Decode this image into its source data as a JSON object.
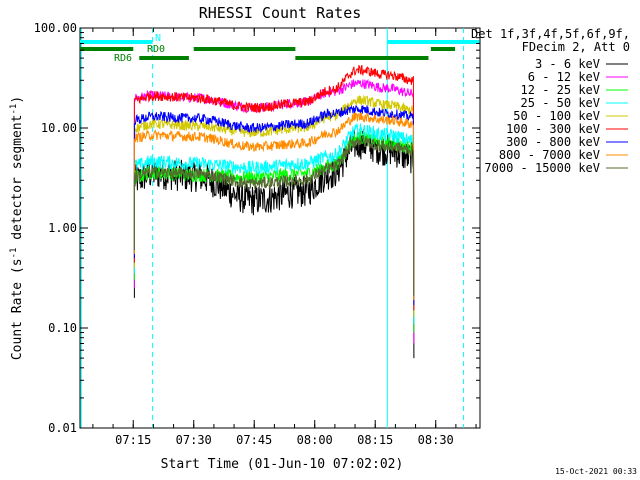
{
  "chart_data": {
    "type": "line",
    "title": "RHESSI Count Rates",
    "xlabel": "Start Time (01-Jun-10 07:02:02)",
    "ylabel_main": "Count Rate (s",
    "ylabel_sup1": "-1",
    "ylabel_mid": " detector segment",
    "ylabel_sup2": "-1",
    "ylabel_end": ")",
    "yscale": "log",
    "ylim": [
      0.01,
      100
    ],
    "xlim_minutes": [
      7.03,
      8.683
    ],
    "x_ticks": [
      {
        "label": "07:15",
        "t": 7.25
      },
      {
        "label": "07:30",
        "t": 7.5
      },
      {
        "label": "07:45",
        "t": 7.75
      },
      {
        "label": "08:00",
        "t": 8.0
      },
      {
        "label": "08:15",
        "t": 8.25
      },
      {
        "label": "08:30",
        "t": 8.5
      }
    ],
    "y_ticks": [
      {
        "label": "100.00",
        "v": 100
      },
      {
        "label": "10.00",
        "v": 10
      },
      {
        "label": "1.00",
        "v": 1
      },
      {
        "label": "0.10",
        "v": 0.1
      },
      {
        "label": "0.01",
        "v": 0.01
      }
    ],
    "legend_header_1": "Det 1f,3f,4f,5f,6f,9f,",
    "legend_header_2": "FDecim 2, Att 0",
    "data_start": 7.255,
    "data_end": 8.41,
    "key_times": [
      7.255,
      7.33,
      7.5,
      7.75,
      7.95,
      8.07,
      8.18,
      8.3,
      8.41
    ],
    "series": [
      {
        "name": "3 - 6 keV",
        "color": "#000000",
        "noise": 0.16,
        "profile": [
          3.0,
          3.5,
          3.3,
          1.9,
          2.3,
          3.5,
          7.0,
          6.0,
          5.0
        ]
      },
      {
        "name": "6 - 12 keV",
        "color": "#ff00ff",
        "noise": 0.05,
        "profile": [
          20,
          21,
          20,
          16,
          18,
          23,
          28,
          25,
          22
        ]
      },
      {
        "name": "12 - 25 keV",
        "color": "#00ff00",
        "noise": 0.07,
        "profile": [
          3.2,
          3.6,
          3.4,
          3.2,
          3.5,
          4.2,
          8.0,
          7.0,
          6.5
        ]
      },
      {
        "name": "25 - 50 keV",
        "color": "#00ffff",
        "noise": 0.07,
        "profile": [
          4.2,
          4.6,
          4.4,
          4.0,
          4.4,
          5.2,
          9.5,
          8.5,
          7.5
        ]
      },
      {
        "name": "50 - 100 keV",
        "color": "#d2c800",
        "noise": 0.05,
        "profile": [
          10,
          11,
          10.5,
          9.0,
          10,
          13,
          19,
          17,
          15
        ]
      },
      {
        "name": "100 - 300 keV",
        "color": "#ff0000",
        "noise": 0.05,
        "profile": [
          19,
          21,
          20,
          16,
          18,
          24,
          38,
          34,
          30
        ]
      },
      {
        "name": "300 - 800 keV",
        "color": "#0000ff",
        "noise": 0.05,
        "profile": [
          12,
          13,
          12.5,
          10,
          11,
          14,
          15.5,
          14,
          13
        ]
      },
      {
        "name": "800 - 7000 keV",
        "color": "#ff8c00",
        "noise": 0.05,
        "profile": [
          8,
          8.5,
          8.2,
          6.5,
          7,
          9,
          13,
          12,
          11
        ]
      },
      {
        "name": "7000 - 15000 keV",
        "color": "#556b2f",
        "noise": 0.06,
        "profile": [
          3.3,
          3.6,
          3.5,
          2.8,
          3.0,
          4.0,
          7.5,
          6.5,
          6.0
        ]
      }
    ],
    "attenuator_flags": [
      {
        "label": "N",
        "color": "#00ffff",
        "segments": [
          [
            7.03,
            7.33
          ],
          [
            8.3,
            8.68
          ]
        ]
      },
      {
        "label": "RD0",
        "color": "#008000",
        "segments": [
          [
            7.03,
            7.25
          ],
          [
            7.5,
            7.92
          ],
          [
            8.48,
            8.58
          ]
        ]
      },
      {
        "label": "RD6",
        "color": "#008000",
        "segments": [
          [
            7.275,
            7.48
          ],
          [
            7.92,
            8.47
          ]
        ]
      }
    ],
    "vertical_markers": [
      {
        "t": 7.035,
        "style": "solid"
      },
      {
        "t": 7.33,
        "style": "dashed"
      },
      {
        "t": 8.3,
        "style": "solid"
      },
      {
        "t": 8.615,
        "style": "dashed"
      }
    ],
    "timestamp": "15-Oct-2021 00:33"
  }
}
